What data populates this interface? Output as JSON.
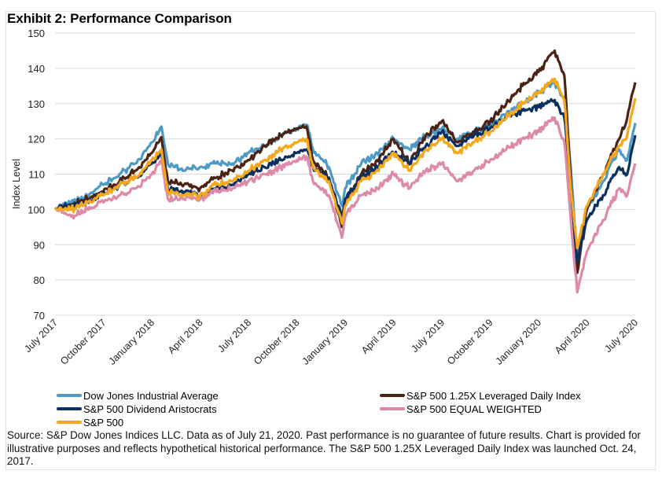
{
  "chart_data": {
    "type": "line",
    "title": "Exhibit 2: Performance Comparison",
    "xlabel": "",
    "ylabel": "Index Level",
    "ylim": [
      70,
      150
    ],
    "yticks": [
      70,
      80,
      90,
      100,
      110,
      120,
      130,
      140,
      150
    ],
    "grid": true,
    "legend_position": "bottom",
    "x_tick_labels": [
      "July 2017",
      "October 2017",
      "January 2018",
      "April 2018",
      "July 2018",
      "October 2018",
      "January 2019",
      "April 2019",
      "July 2019",
      "October 2019",
      "January 2020",
      "April 2020",
      "July 2020"
    ],
    "x": [
      "2017-07",
      "2017-08",
      "2017-09",
      "2017-10",
      "2017-11",
      "2017-12",
      "2018-01",
      "2018-01b",
      "2018-02",
      "2018-03",
      "2018-04",
      "2018-05",
      "2018-06",
      "2018-07",
      "2018-08",
      "2018-09",
      "2018-10",
      "2018-10b",
      "2018-11",
      "2018-12",
      "2018-12b",
      "2019-01",
      "2019-02",
      "2019-03",
      "2019-04",
      "2019-05",
      "2019-06",
      "2019-07",
      "2019-08",
      "2019-09",
      "2019-10",
      "2019-11",
      "2019-12",
      "2020-01",
      "2020-02",
      "2020-02b",
      "2020-03",
      "2020-03b",
      "2020-04",
      "2020-05",
      "2020-06",
      "2020-06b",
      "2020-07"
    ],
    "x_months": [
      0,
      1,
      2,
      3,
      4,
      5,
      6,
      6.6,
      7,
      8,
      9,
      10,
      11,
      12,
      13,
      14,
      15,
      15.6,
      16,
      17,
      17.8,
      18,
      19,
      20,
      21,
      22,
      23,
      24,
      25,
      26,
      27,
      28,
      29,
      30,
      31,
      31.6,
      32,
      32.4,
      33,
      34,
      35,
      35.5,
      36
    ],
    "series": [
      {
        "name": "Dow Jones Industrial Average",
        "color": "#4e9ac7",
        "values": [
          100,
          102,
          104,
          107,
          110,
          113,
          119,
          123.5,
          113,
          111,
          112,
          113,
          113,
          116,
          118,
          121,
          123,
          124,
          117,
          112,
          101,
          106,
          113,
          116,
          120,
          117,
          121,
          123,
          120,
          122,
          124,
          127,
          130,
          133,
          136,
          131,
          112,
          86,
          100,
          108,
          117,
          114,
          124.5
        ]
      },
      {
        "name": "S&P 500 1.25X Leveraged Daily Index",
        "color": "#4a2314",
        "values": [
          100,
          101,
          103,
          105,
          108,
          111,
          116,
          120.5,
          108,
          107,
          106,
          109,
          111,
          114,
          118,
          121,
          123,
          123.5,
          114,
          109,
          95,
          102,
          110,
          114,
          120,
          113,
          121,
          125,
          119,
          122,
          125,
          130,
          135,
          139,
          145,
          138,
          108,
          82,
          100,
          110,
          120,
          126,
          136
        ]
      },
      {
        "name": "S&P 500 Dividend Aristocrats",
        "color": "#0b2f5e",
        "values": [
          100,
          101,
          102,
          104,
          107,
          109,
          113,
          116,
          106,
          105,
          104,
          106,
          107,
          110,
          112,
          114,
          116,
          117,
          112,
          109,
          98,
          103,
          109,
          112,
          116,
          113,
          118,
          122,
          118,
          121,
          123,
          126,
          128,
          129,
          131,
          126,
          106,
          85,
          97,
          104,
          112,
          110,
          121
        ]
      },
      {
        "name": "S&P 500 EQUAL WEIGHTED",
        "color": "#dc8aa8",
        "values": [
          100,
          98,
          100,
          102,
          104,
          106,
          110,
          114,
          103,
          103,
          103,
          105,
          106,
          108,
          110,
          112,
          114,
          115,
          108,
          104,
          92,
          98,
          104,
          106,
          110,
          106,
          111,
          113,
          108,
          111,
          114,
          117,
          120,
          122,
          126,
          119,
          97,
          76.5,
          88,
          97,
          106,
          104,
          113
        ]
      },
      {
        "name": "S&P 500",
        "color": "#f5a81c",
        "values": [
          100,
          100,
          102,
          104,
          107,
          109,
          114,
          117,
          105,
          104,
          104,
          107,
          108,
          111,
          114,
          117,
          119,
          120,
          112,
          108,
          96,
          101,
          108,
          111,
          116,
          111,
          117,
          120,
          116,
          119,
          122,
          126,
          130,
          133,
          137,
          131,
          106,
          89,
          101,
          110,
          118,
          121,
          131.5
        ]
      }
    ]
  },
  "legend": {
    "items": [
      {
        "label": "Dow Jones Industrial Average",
        "color": "#4e9ac7"
      },
      {
        "label": "S&P 500 1.25X Leveraged Daily Index",
        "color": "#4a2314"
      },
      {
        "label": "S&P 500 Dividend Aristocrats",
        "color": "#0b2f5e"
      },
      {
        "label": "S&P 500 EQUAL WEIGHTED",
        "color": "#dc8aa8"
      },
      {
        "label": "S&P 500",
        "color": "#f5a81c"
      }
    ]
  },
  "source_note": "Source: S&P Dow Jones Indices LLC. Data as of July 21, 2020. Past performance is no guarantee of future results. Chart is provided for illustrative purposes and reflects hypothetical historical performance. The S&P 500 1.25X Leveraged Daily Index was launched Oct. 24, 2017."
}
